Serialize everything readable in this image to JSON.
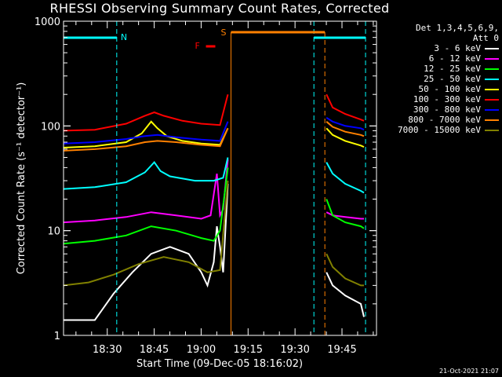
{
  "chart_data": {
    "type": "line",
    "title": "RHESSI Observing Summary Count Rates, Corrected",
    "xlabel": "Start Time (09-Dec-05 18:16:02)",
    "ylabel": "Corrected Count Rate (s⁻¹ detector⁻¹)",
    "y_scale": "log",
    "ylim": [
      1,
      1000
    ],
    "xlim_minutes_after_start": [
      0,
      100
    ],
    "x_tick_labels": [
      "18:30",
      "18:45",
      "19:00",
      "19:15",
      "19:30",
      "19:45"
    ],
    "y_tick_labels": [
      "1",
      "10",
      "100",
      "1000"
    ],
    "legend_header": [
      "Det 1,3,4,5,6,9,",
      "Att 0"
    ],
    "legend_placement": "right",
    "series": [
      {
        "name": "3 - 6 keV",
        "color": "#ffffff",
        "x": [
          0,
          5,
          10,
          16,
          22,
          28,
          34,
          40,
          44,
          46,
          48,
          49,
          50,
          51,
          52.5
        ],
        "y": [
          1.4,
          1.4,
          1.4,
          2.5,
          4,
          6,
          7,
          6,
          4,
          3,
          5,
          11,
          7,
          4,
          28
        ]
      },
      {
        "name": "6 - 12 keV",
        "color": "#ff00ff",
        "x": [
          0,
          10,
          20,
          28,
          36,
          44,
          47,
          49,
          50,
          51,
          52.5
        ],
        "y": [
          12,
          12.5,
          13.5,
          15,
          14,
          13,
          14,
          35,
          14,
          16,
          48
        ]
      },
      {
        "name": "12 - 25 keV",
        "color": "#00ff00",
        "x": [
          0,
          10,
          20,
          28,
          36,
          44,
          48,
          50,
          52.5
        ],
        "y": [
          7.5,
          8,
          9,
          11,
          10,
          8.5,
          8,
          10,
          40
        ]
      },
      {
        "name": "25 - 50 keV",
        "color": "#00ffff",
        "x": [
          0,
          10,
          20,
          26,
          29,
          31,
          34,
          42,
          48,
          51,
          52.5
        ],
        "y": [
          25,
          26,
          29,
          36,
          45,
          37,
          33,
          30,
          30,
          32,
          50
        ]
      },
      {
        "name": "50 - 100 keV",
        "color": "#ffff00",
        "x": [
          0,
          10,
          20,
          25,
          28,
          30,
          33,
          38,
          44,
          50,
          52.5
        ],
        "y": [
          62,
          64,
          70,
          85,
          110,
          95,
          80,
          72,
          68,
          66,
          95
        ]
      },
      {
        "name": "100 - 300 keV",
        "color": "#ff0000",
        "x": [
          0,
          10,
          20,
          26,
          29,
          32,
          38,
          44,
          50,
          52.5
        ],
        "y": [
          90,
          92,
          105,
          125,
          135,
          125,
          112,
          105,
          102,
          200
        ]
      },
      {
        "name": "300 - 800 keV",
        "color": "#0000ff",
        "x": [
          0,
          10,
          20,
          26,
          30,
          36,
          44,
          50,
          52.5
        ],
        "y": [
          68,
          70,
          75,
          80,
          82,
          78,
          74,
          72,
          110
        ]
      },
      {
        "name": "800 - 7000 keV",
        "color": "#ff8000",
        "x": [
          0,
          10,
          20,
          26,
          30,
          36,
          44,
          50,
          52.5
        ],
        "y": [
          58,
          60,
          64,
          70,
          72,
          70,
          66,
          64,
          95
        ]
      },
      {
        "name": "7000 - 15000 keV",
        "color": "#808000",
        "x": [
          0,
          8,
          16,
          24,
          32,
          40,
          46,
          50,
          52.5
        ],
        "y": [
          3,
          3.2,
          3.8,
          4.8,
          5.6,
          5,
          4,
          4.2,
          30
        ]
      }
    ],
    "series_after_gap": {
      "x": [
        84,
        86,
        90,
        95,
        96
      ],
      "3 - 6 keV": [
        4,
        3,
        2.4,
        2,
        1.5
      ],
      "6 - 12 keV": [
        15,
        14,
        13.5,
        13,
        13
      ],
      "12 - 25 keV": [
        20,
        14,
        12,
        11,
        10.5
      ],
      "25 - 50 keV": [
        45,
        35,
        28,
        24,
        23
      ],
      "50 - 100 keV": [
        95,
        82,
        72,
        65,
        63
      ],
      "100 - 300 keV": [
        200,
        150,
        130,
        115,
        112
      ],
      "300 - 800 keV": [
        120,
        110,
        100,
        95,
        92
      ],
      "800 - 7000 keV": [
        110,
        98,
        88,
        82,
        80
      ],
      "7000 - 15000 keV": [
        6,
        4.5,
        3.5,
        3,
        3
      ]
    },
    "annotations": {
      "night_label": "N",
      "saa_label": "S",
      "flare_label": "F",
      "night_intervals": [
        [
          0,
          17
        ],
        [
          80,
          96.5
        ]
      ],
      "saa_interval": [
        53.5,
        83.5
      ],
      "flare_interval": [
        45.5,
        48.5
      ],
      "night_color": "#00ffff",
      "saa_color": "#ff8000",
      "flare_color": "#ff0000"
    }
  },
  "footer": {
    "date": "21-Oct-2021 21:07"
  }
}
